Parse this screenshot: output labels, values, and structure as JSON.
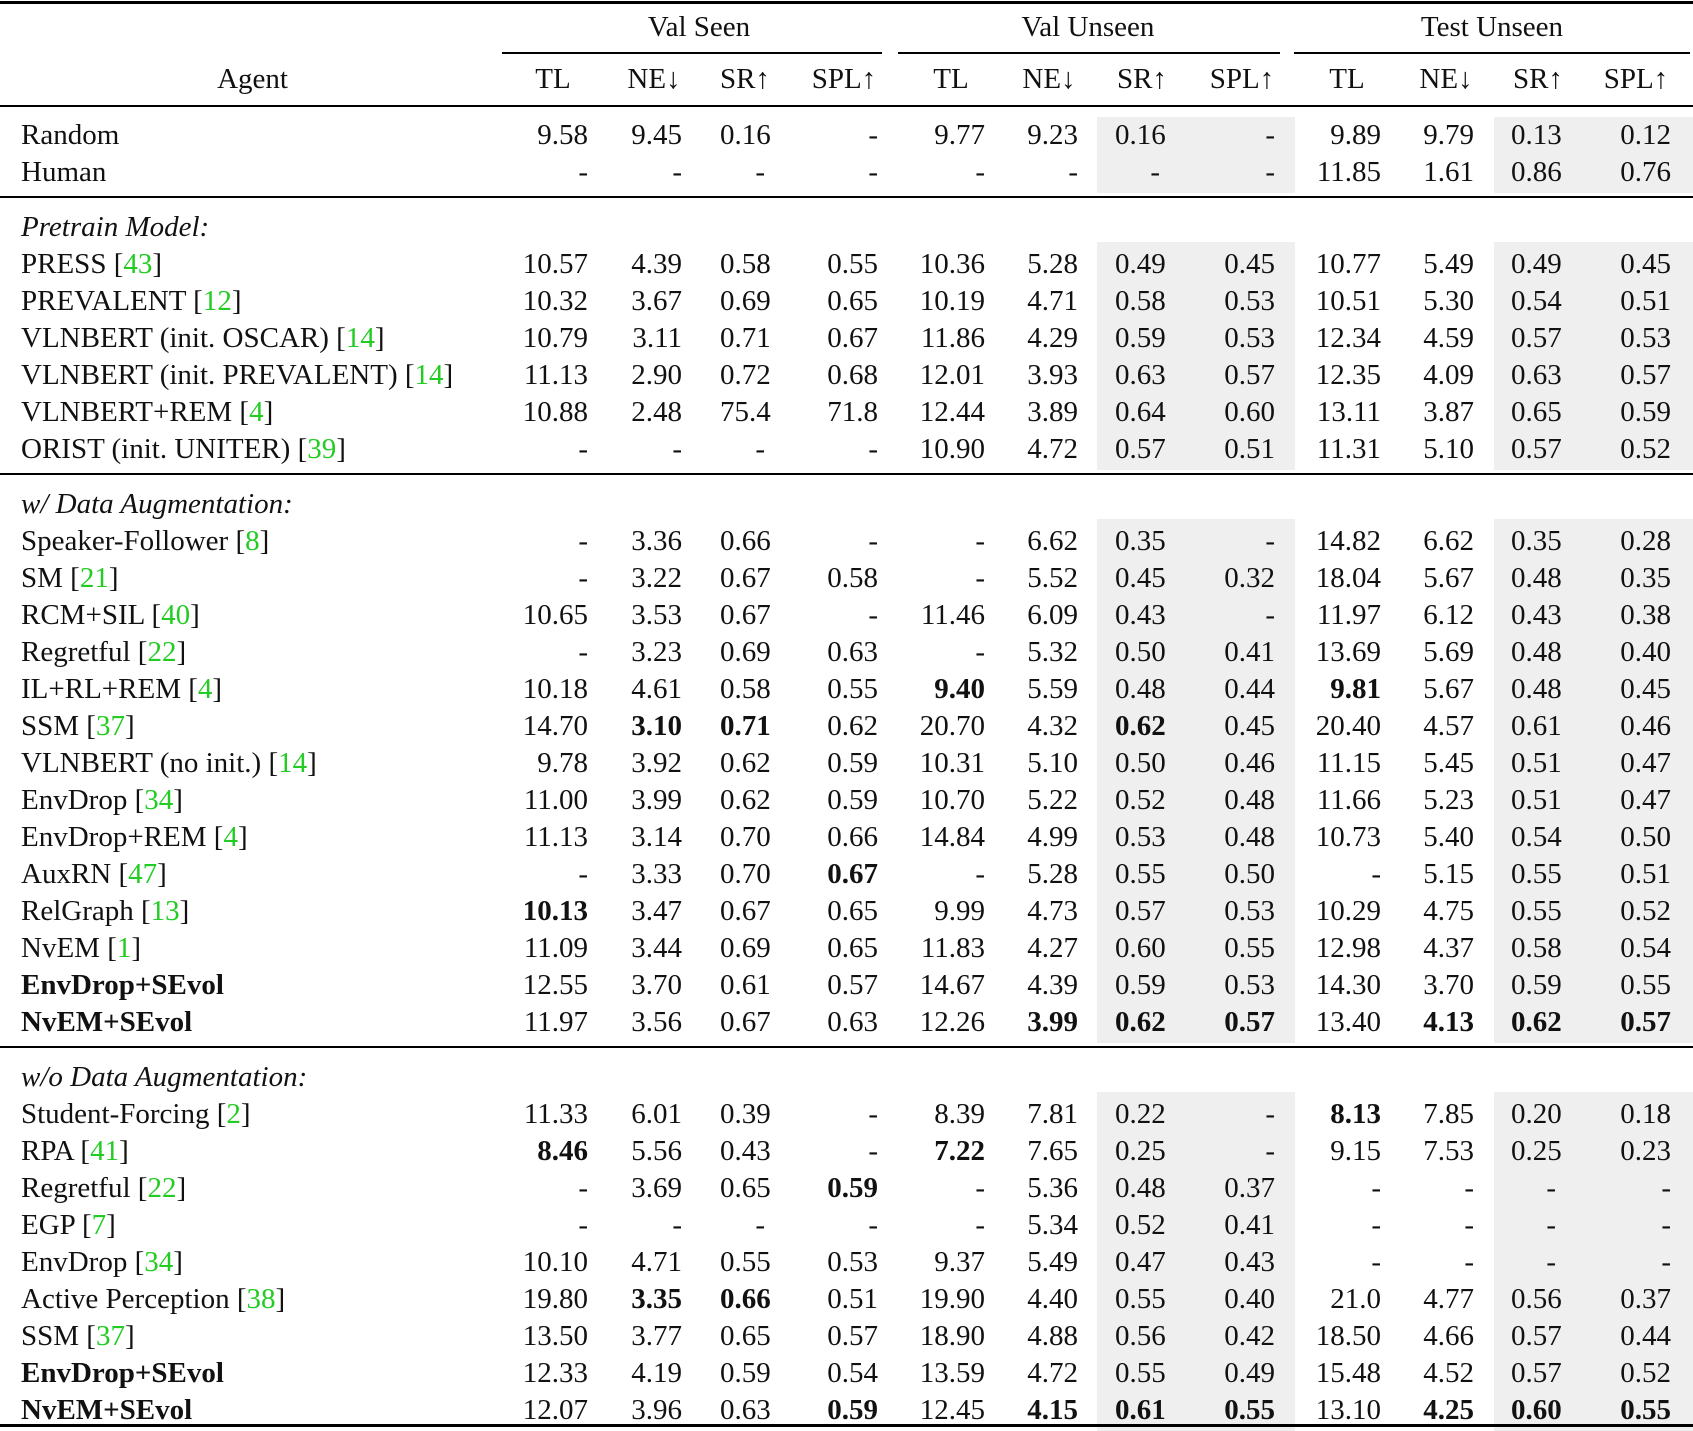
{
  "table": {
    "groups": [
      "Val Seen",
      "Val Unseen",
      "Test Unseen"
    ],
    "agent_header": "Agent",
    "metric_headers": [
      "TL",
      "NE↓",
      "SR↑",
      "SPL↑"
    ],
    "shading_color": "#efefef",
    "citation_color": "#22cc22",
    "sections": [
      {
        "title": "",
        "rows": [
          {
            "agent": "Random",
            "cite": "",
            "bold_name": false,
            "values": [
              "9.58",
              "9.45",
              "0.16",
              "-",
              "9.77",
              "9.23",
              "0.16",
              "-",
              "9.89",
              "9.79",
              "0.13",
              "0.12"
            ],
            "bold": []
          },
          {
            "agent": "Human",
            "cite": "",
            "bold_name": false,
            "values": [
              "-",
              "-",
              "-",
              "-",
              "-",
              "-",
              "-",
              "-",
              "11.85",
              "1.61",
              "0.86",
              "0.76"
            ],
            "bold": []
          }
        ]
      },
      {
        "title": "Pretrain Model:",
        "rows": [
          {
            "agent": "PRESS",
            "cite": "43",
            "bold_name": false,
            "values": [
              "10.57",
              "4.39",
              "0.58",
              "0.55",
              "10.36",
              "5.28",
              "0.49",
              "0.45",
              "10.77",
              "5.49",
              "0.49",
              "0.45"
            ],
            "bold": []
          },
          {
            "agent": "PREVALENT",
            "cite": "12",
            "bold_name": false,
            "values": [
              "10.32",
              "3.67",
              "0.69",
              "0.65",
              "10.19",
              "4.71",
              "0.58",
              "0.53",
              "10.51",
              "5.30",
              "0.54",
              "0.51"
            ],
            "bold": []
          },
          {
            "agent": "VLNBERT (init. OSCAR)",
            "cite": "14",
            "bold_name": false,
            "values": [
              "10.79",
              "3.11",
              "0.71",
              "0.67",
              "11.86",
              "4.29",
              "0.59",
              "0.53",
              "12.34",
              "4.59",
              "0.57",
              "0.53"
            ],
            "bold": []
          },
          {
            "agent": "VLNBERT (init. PREVALENT)",
            "cite": "14",
            "bold_name": false,
            "values": [
              "11.13",
              "2.90",
              "0.72",
              "0.68",
              "12.01",
              "3.93",
              "0.63",
              "0.57",
              "12.35",
              "4.09",
              "0.63",
              "0.57"
            ],
            "bold": []
          },
          {
            "agent": "VLNBERT+REM",
            "cite": "4",
            "bold_name": false,
            "values": [
              "10.88",
              "2.48",
              "75.4",
              "71.8",
              "12.44",
              "3.89",
              "0.64",
              "0.60",
              "13.11",
              "3.87",
              "0.65",
              "0.59"
            ],
            "bold": []
          },
          {
            "agent": "ORIST (init. UNITER)",
            "cite": "39",
            "bold_name": false,
            "values": [
              "-",
              "-",
              "-",
              "-",
              "10.90",
              "4.72",
              "0.57",
              "0.51",
              "11.31",
              "5.10",
              "0.57",
              "0.52"
            ],
            "bold": []
          }
        ]
      },
      {
        "title": "w/ Data Augmentation:",
        "rows": [
          {
            "agent": "Speaker-Follower",
            "cite": "8",
            "bold_name": false,
            "values": [
              "-",
              "3.36",
              "0.66",
              "-",
              "-",
              "6.62",
              "0.35",
              "-",
              "14.82",
              "6.62",
              "0.35",
              "0.28"
            ],
            "bold": []
          },
          {
            "agent": "SM",
            "cite": "21",
            "bold_name": false,
            "values": [
              "-",
              "3.22",
              "0.67",
              "0.58",
              "-",
              "5.52",
              "0.45",
              "0.32",
              "18.04",
              "5.67",
              "0.48",
              "0.35"
            ],
            "bold": []
          },
          {
            "agent": "RCM+SIL",
            "cite": "40",
            "bold_name": false,
            "values": [
              "10.65",
              "3.53",
              "0.67",
              "-",
              "11.46",
              "6.09",
              "0.43",
              "-",
              "11.97",
              "6.12",
              "0.43",
              "0.38"
            ],
            "bold": []
          },
          {
            "agent": "Regretful",
            "cite": "22",
            "bold_name": false,
            "values": [
              "-",
              "3.23",
              "0.69",
              "0.63",
              "-",
              "5.32",
              "0.50",
              "0.41",
              "13.69",
              "5.69",
              "0.48",
              "0.40"
            ],
            "bold": []
          },
          {
            "agent": "IL+RL+REM",
            "cite": "4",
            "bold_name": false,
            "values": [
              "10.18",
              "4.61",
              "0.58",
              "0.55",
              "9.40",
              "5.59",
              "0.48",
              "0.44",
              "9.81",
              "5.67",
              "0.48",
              "0.45"
            ],
            "bold": [
              4,
              8
            ]
          },
          {
            "agent": "SSM",
            "cite": "37",
            "bold_name": false,
            "values": [
              "14.70",
              "3.10",
              "0.71",
              "0.62",
              "20.70",
              "4.32",
              "0.62",
              "0.45",
              "20.40",
              "4.57",
              "0.61",
              "0.46"
            ],
            "bold": [
              1,
              2,
              6
            ]
          },
          {
            "agent": "VLNBERT (no init.)",
            "cite": "14",
            "bold_name": false,
            "values": [
              "9.78",
              "3.92",
              "0.62",
              "0.59",
              "10.31",
              "5.10",
              "0.50",
              "0.46",
              "11.15",
              "5.45",
              "0.51",
              "0.47"
            ],
            "bold": []
          },
          {
            "agent": "EnvDrop",
            "cite": "34",
            "bold_name": false,
            "values": [
              "11.00",
              "3.99",
              "0.62",
              "0.59",
              "10.70",
              "5.22",
              "0.52",
              "0.48",
              "11.66",
              "5.23",
              "0.51",
              "0.47"
            ],
            "bold": []
          },
          {
            "agent": "EnvDrop+REM",
            "cite": "4",
            "bold_name": false,
            "values": [
              "11.13",
              "3.14",
              "0.70",
              "0.66",
              "14.84",
              "4.99",
              "0.53",
              "0.48",
              "10.73",
              "5.40",
              "0.54",
              "0.50"
            ],
            "bold": []
          },
          {
            "agent": "AuxRN",
            "cite": "47",
            "bold_name": false,
            "values": [
              "-",
              "3.33",
              "0.70",
              "0.67",
              "-",
              "5.28",
              "0.55",
              "0.50",
              "-",
              "5.15",
              "0.55",
              "0.51"
            ],
            "bold": [
              3
            ]
          },
          {
            "agent": "RelGraph",
            "cite": "13",
            "bold_name": false,
            "values": [
              "10.13",
              "3.47",
              "0.67",
              "0.65",
              "9.99",
              "4.73",
              "0.57",
              "0.53",
              "10.29",
              "4.75",
              "0.55",
              "0.52"
            ],
            "bold": [
              0
            ]
          },
          {
            "agent": "NvEM",
            "cite": "1",
            "bold_name": false,
            "values": [
              "11.09",
              "3.44",
              "0.69",
              "0.65",
              "11.83",
              "4.27",
              "0.60",
              "0.55",
              "12.98",
              "4.37",
              "0.58",
              "0.54"
            ],
            "bold": []
          },
          {
            "agent": "EnvDrop+SEvol",
            "cite": "",
            "bold_name": true,
            "values": [
              "12.55",
              "3.70",
              "0.61",
              "0.57",
              "14.67",
              "4.39",
              "0.59",
              "0.53",
              "14.30",
              "3.70",
              "0.59",
              "0.55"
            ],
            "bold": []
          },
          {
            "agent": "NvEM+SEvol",
            "cite": "",
            "bold_name": true,
            "values": [
              "11.97",
              "3.56",
              "0.67",
              "0.63",
              "12.26",
              "3.99",
              "0.62",
              "0.57",
              "13.40",
              "4.13",
              "0.62",
              "0.57"
            ],
            "bold": [
              5,
              6,
              7,
              9,
              10,
              11
            ]
          }
        ]
      },
      {
        "title": "w/o Data Augmentation:",
        "rows": [
          {
            "agent": "Student-Forcing",
            "cite": "2",
            "bold_name": false,
            "values": [
              "11.33",
              "6.01",
              "0.39",
              "-",
              "8.39",
              "7.81",
              "0.22",
              "-",
              "8.13",
              "7.85",
              "0.20",
              "0.18"
            ],
            "bold": [
              8
            ]
          },
          {
            "agent": "RPA",
            "cite": "41",
            "bold_name": false,
            "values": [
              "8.46",
              "5.56",
              "0.43",
              "-",
              "7.22",
              "7.65",
              "0.25",
              "-",
              "9.15",
              "7.53",
              "0.25",
              "0.23"
            ],
            "bold": [
              0,
              4
            ]
          },
          {
            "agent": "Regretful",
            "cite": "22",
            "bold_name": false,
            "values": [
              "-",
              "3.69",
              "0.65",
              "0.59",
              "-",
              "5.36",
              "0.48",
              "0.37",
              "-",
              "-",
              "-",
              "-"
            ],
            "bold": [
              3
            ]
          },
          {
            "agent": "EGP",
            "cite": "7",
            "bold_name": false,
            "values": [
              "-",
              "-",
              "-",
              "-",
              "-",
              "5.34",
              "0.52",
              "0.41",
              "-",
              "-",
              "-",
              "-"
            ],
            "bold": []
          },
          {
            "agent": "EnvDrop",
            "cite": "34",
            "bold_name": false,
            "values": [
              "10.10",
              "4.71",
              "0.55",
              "0.53",
              "9.37",
              "5.49",
              "0.47",
              "0.43",
              "-",
              "-",
              "-",
              "-"
            ],
            "bold": []
          },
          {
            "agent": "Active Perception",
            "cite": "38",
            "bold_name": false,
            "values": [
              "19.80",
              "3.35",
              "0.66",
              "0.51",
              "19.90",
              "4.40",
              "0.55",
              "0.40",
              "21.0",
              "4.77",
              "0.56",
              "0.37"
            ],
            "bold": [
              1,
              2
            ]
          },
          {
            "agent": "SSM",
            "cite": "37",
            "bold_name": false,
            "values": [
              "13.50",
              "3.77",
              "0.65",
              "0.57",
              "18.90",
              "4.88",
              "0.56",
              "0.42",
              "18.50",
              "4.66",
              "0.57",
              "0.44"
            ],
            "bold": []
          },
          {
            "agent": "EnvDrop+SEvol",
            "cite": "",
            "bold_name": true,
            "values": [
              "12.33",
              "4.19",
              "0.59",
              "0.54",
              "13.59",
              "4.72",
              "0.55",
              "0.49",
              "15.48",
              "4.52",
              "0.57",
              "0.52"
            ],
            "bold": []
          },
          {
            "agent": "NvEM+SEvol",
            "cite": "",
            "bold_name": true,
            "values": [
              "12.07",
              "3.96",
              "0.63",
              "0.59",
              "12.45",
              "4.15",
              "0.61",
              "0.55",
              "13.10",
              "4.25",
              "0.60",
              "0.55"
            ],
            "bold": [
              3,
              5,
              6,
              7,
              9,
              10,
              11
            ]
          }
        ]
      }
    ]
  }
}
